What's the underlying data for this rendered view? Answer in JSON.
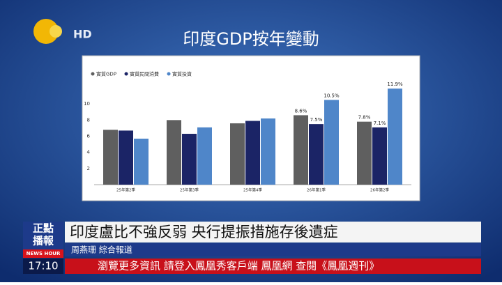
{
  "logo": {
    "text": "HD"
  },
  "chart_data": {
    "type": "bar",
    "title": "印度GDP按年變動",
    "categories": [
      "25年第2季",
      "25年第3季",
      "25年第4季",
      "26年第1季",
      "26年第2季"
    ],
    "series": [
      {
        "name": "實質GDP",
        "color": "#5f5f5f",
        "values": [
          6.8,
          8.0,
          7.6,
          8.6,
          7.8
        ],
        "value_labels": [
          null,
          null,
          null,
          "8.6%",
          "7.8%"
        ]
      },
      {
        "name": "實質民間消費",
        "color": "#1b2466",
        "values": [
          6.7,
          6.3,
          7.9,
          7.5,
          7.1
        ],
        "value_labels": [
          null,
          null,
          null,
          "7.5%",
          "7.1%"
        ]
      },
      {
        "name": "實質投資",
        "color": "#4f86c9",
        "values": [
          5.7,
          7.1,
          8.2,
          10.5,
          11.9
        ],
        "value_labels": [
          null,
          null,
          null,
          "10.5%",
          "11.9%"
        ]
      }
    ],
    "ylim": [
      0,
      12
    ],
    "yticks": [
      2,
      4,
      6,
      8,
      10
    ],
    "grid": false,
    "legend": "top-left"
  },
  "news": {
    "badge": [
      "正點",
      "播報"
    ],
    "badge_sub": "NEWS HOUR",
    "headline": "印度盧比不強反弱 央行提振措施存後遺症",
    "reporter": "周燕珊 綜合報道",
    "time": "17:10",
    "ticker": "瀏覽更多資訊 請登入鳳凰秀客戶端 鳳凰網 查閱《鳳凰週刊》"
  }
}
